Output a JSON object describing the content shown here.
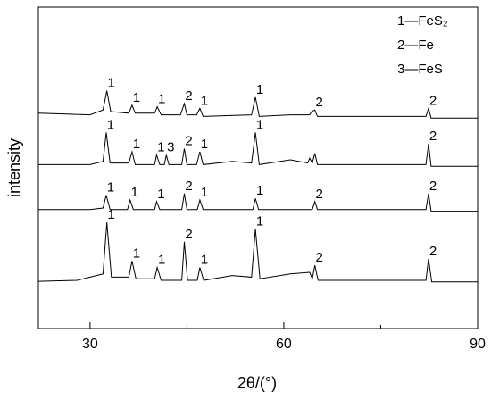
{
  "chart_data": {
    "type": "line",
    "xlabel": "2θ/(°)",
    "ylabel": "intensity",
    "xlim": [
      22,
      90
    ],
    "ylim": [
      0,
      100
    ],
    "xticks": [
      30,
      60,
      90
    ],
    "minor_xticks": [
      45,
      75
    ],
    "legend": [
      "1—FeS₂",
      "2—Fe",
      "3—FeS"
    ],
    "legend_loc": "upper right",
    "series": [
      {
        "color": "#000000",
        "x": [
          22,
          30,
          32,
          32.6,
          33.2,
          36,
          36.5,
          37,
          40,
          40.4,
          41,
          44,
          44.6,
          45,
          46.5,
          47,
          47.5,
          55,
          55.6,
          56.2,
          61,
          64,
          64.3,
          64.8,
          65.2,
          82,
          82.4,
          82.8,
          90
        ],
        "values": [
          67,
          66.5,
          68,
          74,
          67.5,
          67,
          69.5,
          67,
          67,
          69,
          66.5,
          66.5,
          70,
          66.5,
          66.5,
          68.5,
          66,
          66.5,
          72,
          66,
          66.5,
          66.5,
          67.5,
          68,
          66,
          66,
          68.5,
          65.5,
          65.5
        ],
        "peaks": [
          {
            "x": 32.6,
            "label": "1"
          },
          {
            "x": 36.5,
            "label": "1"
          },
          {
            "x": 40.4,
            "label": "1"
          },
          {
            "x": 44.6,
            "label": "2"
          },
          {
            "x": 47,
            "label": "1"
          },
          {
            "x": 55.6,
            "label": "1"
          },
          {
            "x": 64.8,
            "label": "2"
          },
          {
            "x": 82.4,
            "label": "2"
          }
        ]
      },
      {
        "color": "#000000",
        "x": [
          22,
          30,
          32,
          32.5,
          33.1,
          36,
          36.5,
          37,
          40,
          40.3,
          40.8,
          41.5,
          41.8,
          42.2,
          44.2,
          44.6,
          45,
          46.5,
          47,
          47.5,
          52,
          55,
          55.6,
          56.2,
          61,
          63.7,
          64,
          64.4,
          64.8,
          65.2,
          82,
          82.4,
          82.8,
          90
        ],
        "values": [
          51,
          51,
          52,
          61,
          51.5,
          51.5,
          55,
          51,
          51,
          54,
          51,
          51,
          54,
          51,
          51,
          56,
          51,
          51,
          55,
          51,
          52,
          51.5,
          61,
          51,
          52.5,
          51.5,
          53,
          51.5,
          54.5,
          51,
          51,
          57.5,
          50.5,
          50.5
        ],
        "peaks": [
          {
            "x": 32.5,
            "label": "1"
          },
          {
            "x": 36.5,
            "label": "1"
          },
          {
            "x": 40.3,
            "label": "1"
          },
          {
            "x": 41.8,
            "label": "3"
          },
          {
            "x": 44.6,
            "label": "2"
          },
          {
            "x": 47,
            "label": "1"
          },
          {
            "x": 55.6,
            "label": "1"
          },
          {
            "x": 82.4,
            "label": "2"
          }
        ]
      },
      {
        "color": "#000000",
        "x": [
          22,
          30,
          32,
          32.5,
          33.1,
          35.8,
          36.2,
          36.7,
          40,
          40.3,
          40.8,
          44.2,
          44.6,
          45,
          46.6,
          47,
          47.5,
          55.2,
          55.6,
          56.1,
          64.4,
          64.8,
          65.2,
          82,
          82.4,
          82.8,
          90
        ],
        "values": [
          37,
          37,
          37.5,
          41.5,
          37,
          37,
          40,
          37,
          37,
          39.5,
          37,
          37,
          42,
          37,
          37,
          40,
          37,
          37,
          40.5,
          37,
          37,
          39.5,
          37,
          37,
          42,
          36.5,
          36.5
        ],
        "peaks": [
          {
            "x": 32.5,
            "label": "1"
          },
          {
            "x": 36.2,
            "label": "1"
          },
          {
            "x": 40.3,
            "label": "1"
          },
          {
            "x": 44.6,
            "label": "2"
          },
          {
            "x": 47,
            "label": "1"
          },
          {
            "x": 55.6,
            "label": "1"
          },
          {
            "x": 64.8,
            "label": "2"
          },
          {
            "x": 82.4,
            "label": "2"
          }
        ]
      },
      {
        "color": "#000000",
        "x": [
          22,
          28,
          30,
          32,
          32.6,
          33.3,
          36,
          36.5,
          37.1,
          40,
          40.4,
          41,
          44.2,
          44.6,
          45.1,
          46.6,
          47,
          47.6,
          52,
          55,
          55.6,
          56.3,
          61,
          64,
          64.4,
          64.8,
          65.3,
          82,
          82.4,
          82.9,
          90
        ],
        "values": [
          14.7,
          15,
          16,
          17,
          33,
          16,
          16,
          21,
          15.5,
          15.5,
          19,
          15,
          15,
          27,
          15,
          15,
          19,
          15,
          16.5,
          16,
          31,
          15.5,
          17,
          17.5,
          15.5,
          19.7,
          15,
          15,
          21.7,
          14.5,
          14.5
        ],
        "peaks": [
          {
            "x": 32.6,
            "label": "1"
          },
          {
            "x": 36.5,
            "label": "1"
          },
          {
            "x": 40.4,
            "label": "1"
          },
          {
            "x": 44.6,
            "label": "2"
          },
          {
            "x": 47,
            "label": "1"
          },
          {
            "x": 55.6,
            "label": "1"
          },
          {
            "x": 64.8,
            "label": "2"
          },
          {
            "x": 82.4,
            "label": "2"
          }
        ]
      }
    ]
  }
}
